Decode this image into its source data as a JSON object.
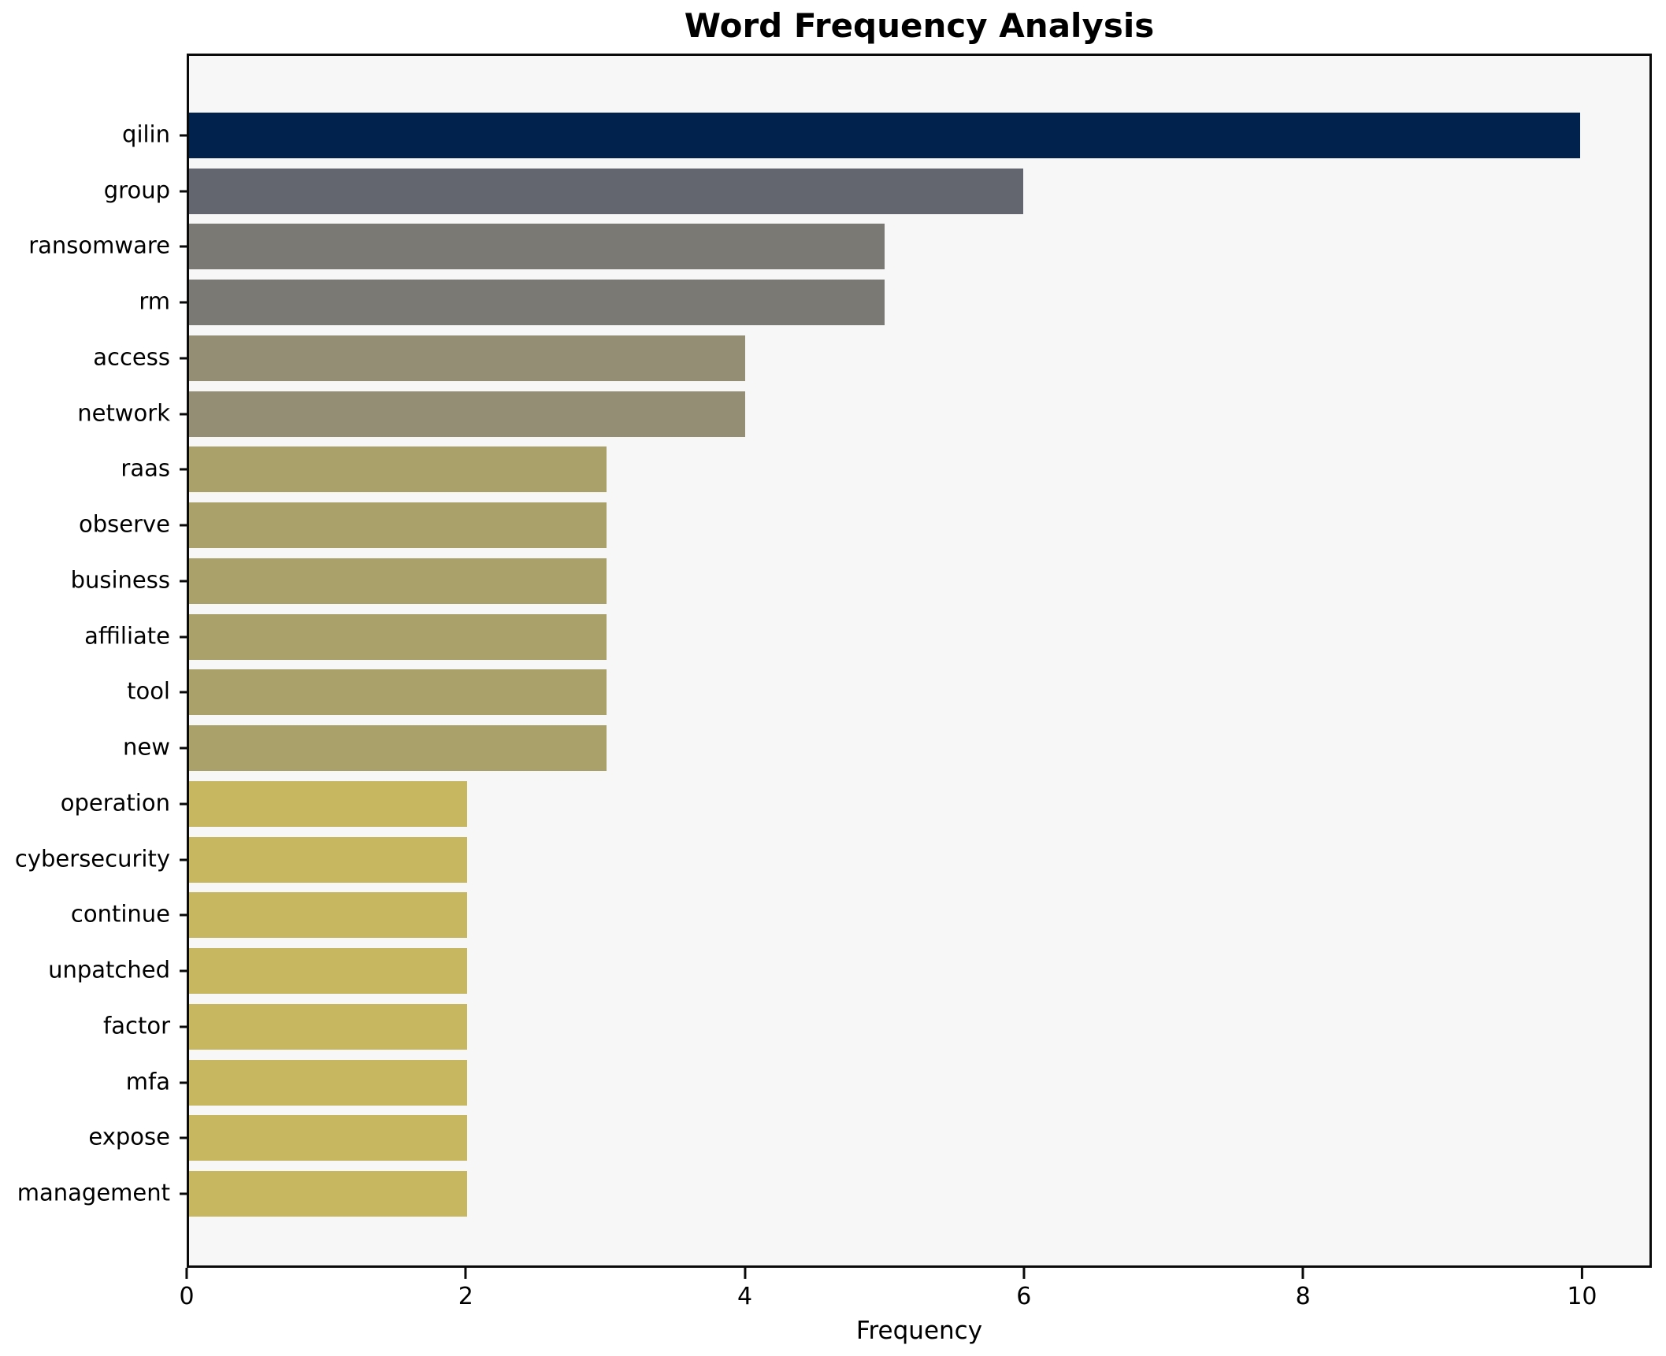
{
  "chart_data": {
    "type": "bar",
    "orientation": "horizontal",
    "title": "Word Frequency Analysis",
    "xlabel": "Frequency",
    "ylabel": "",
    "categories": [
      "qilin",
      "group",
      "ransomware",
      "rm",
      "access",
      "network",
      "raas",
      "observe",
      "business",
      "affiliate",
      "tool",
      "new",
      "operation",
      "cybersecurity",
      "continue",
      "unpatched",
      "factor",
      "mfa",
      "expose",
      "management"
    ],
    "values": [
      10,
      6,
      5,
      5,
      4,
      4,
      3,
      3,
      3,
      3,
      3,
      3,
      2,
      2,
      2,
      2,
      2,
      2,
      2,
      2
    ],
    "bar_colors": [
      "#01224d",
      "#63666e",
      "#7a7973",
      "#7a7973",
      "#938e74",
      "#938e74",
      "#aaa06a",
      "#aaa06a",
      "#aaa06a",
      "#aaa06a",
      "#aaa06a",
      "#aaa06a",
      "#c8b761",
      "#c8b761",
      "#c8b761",
      "#c8b761",
      "#c8b761",
      "#c8b761",
      "#c8b761",
      "#c8b761"
    ],
    "value_color_map": {
      "10": "#01224d",
      "6": "#63666e",
      "5": "#7a7973",
      "4": "#938e74",
      "3": "#aaa06a",
      "2": "#c8b761"
    },
    "xlim": [
      0,
      10.5
    ],
    "xticks": [
      0,
      2,
      4,
      6,
      8,
      10
    ],
    "grid": false,
    "legend": false,
    "plot_background": "#f7f7f7",
    "figure_background": "#ffffff",
    "spine_color": "#0a0a0a"
  }
}
